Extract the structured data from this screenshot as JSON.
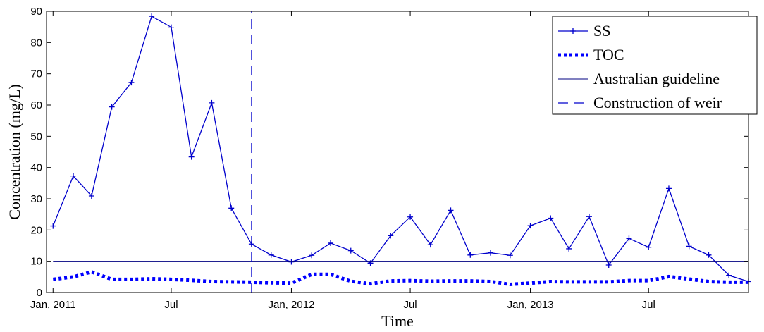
{
  "chart_data": {
    "type": "line",
    "title": "",
    "xlabel": "Time",
    "ylabel": "Concentration (mg/L)",
    "ylim": [
      0,
      90
    ],
    "yticks": [
      0,
      10,
      20,
      30,
      40,
      50,
      60,
      70,
      80,
      90
    ],
    "xlim": [
      "2010-12-22",
      "2013-12-01"
    ],
    "xticks": [
      {
        "date": "2011-01-01",
        "label": "Jan, 2011"
      },
      {
        "date": "2011-07-01",
        "label": "Jul"
      },
      {
        "date": "2012-01-01",
        "label": "Jan, 2012"
      },
      {
        "date": "2012-07-01",
        "label": "Jul"
      },
      {
        "date": "2013-01-01",
        "label": "Jan, 2013"
      },
      {
        "date": "2013-07-01",
        "label": "Jul"
      }
    ],
    "grid": false,
    "legend_position": "top-right",
    "series": [
      {
        "name": "SS",
        "style": "solid-plus-markers",
        "color": "#0000cc",
        "points": [
          {
            "x": "2011-01-01",
            "y": 21.3
          },
          {
            "x": "2011-02-01",
            "y": 37.3
          },
          {
            "x": "2011-03-01",
            "y": 30.9
          },
          {
            "x": "2011-04-01",
            "y": 59.4
          },
          {
            "x": "2011-05-01",
            "y": 67.2
          },
          {
            "x": "2011-06-01",
            "y": 88.4
          },
          {
            "x": "2011-07-01",
            "y": 84.9
          },
          {
            "x": "2011-08-01",
            "y": 43.4
          },
          {
            "x": "2011-09-01",
            "y": 60.7
          },
          {
            "x": "2011-10-01",
            "y": 27.0
          },
          {
            "x": "2011-11-01",
            "y": 15.5
          },
          {
            "x": "2011-12-01",
            "y": 12.0
          },
          {
            "x": "2012-01-01",
            "y": 9.8
          },
          {
            "x": "2012-02-01",
            "y": 11.9
          },
          {
            "x": "2012-03-01",
            "y": 15.8
          },
          {
            "x": "2012-04-01",
            "y": 13.4
          },
          {
            "x": "2012-05-01",
            "y": 9.4
          },
          {
            "x": "2012-06-01",
            "y": 18.2
          },
          {
            "x": "2012-07-01",
            "y": 24.2
          },
          {
            "x": "2012-08-01",
            "y": 15.3
          },
          {
            "x": "2012-09-01",
            "y": 26.3
          },
          {
            "x": "2012-10-01",
            "y": 12.0
          },
          {
            "x": "2012-11-01",
            "y": 12.7
          },
          {
            "x": "2012-12-01",
            "y": 11.9
          },
          {
            "x": "2013-01-01",
            "y": 21.4
          },
          {
            "x": "2013-02-01",
            "y": 23.8
          },
          {
            "x": "2013-03-01",
            "y": 14.0
          },
          {
            "x": "2013-04-01",
            "y": 24.3
          },
          {
            "x": "2013-05-01",
            "y": 8.8
          },
          {
            "x": "2013-06-01",
            "y": 17.3
          },
          {
            "x": "2013-07-01",
            "y": 14.5
          },
          {
            "x": "2013-08-01",
            "y": 33.3
          },
          {
            "x": "2013-09-01",
            "y": 14.8
          },
          {
            "x": "2013-10-01",
            "y": 12.0
          },
          {
            "x": "2013-11-01",
            "y": 5.5
          },
          {
            "x": "2013-12-01",
            "y": 3.5
          }
        ]
      },
      {
        "name": "TOC",
        "style": "dotted-thick",
        "color": "#0000ff",
        "points": [
          {
            "x": "2011-01-01",
            "y": 4.2
          },
          {
            "x": "2011-02-01",
            "y": 5.0
          },
          {
            "x": "2011-03-01",
            "y": 6.6
          },
          {
            "x": "2011-04-01",
            "y": 4.2
          },
          {
            "x": "2011-05-01",
            "y": 4.2
          },
          {
            "x": "2011-06-01",
            "y": 4.4
          },
          {
            "x": "2011-07-01",
            "y": 4.2
          },
          {
            "x": "2011-08-01",
            "y": 3.9
          },
          {
            "x": "2011-09-01",
            "y": 3.5
          },
          {
            "x": "2011-10-01",
            "y": 3.4
          },
          {
            "x": "2011-11-01",
            "y": 3.3
          },
          {
            "x": "2011-12-01",
            "y": 3.1
          },
          {
            "x": "2012-01-01",
            "y": 3.0
          },
          {
            "x": "2012-02-01",
            "y": 5.8
          },
          {
            "x": "2012-03-01",
            "y": 5.8
          },
          {
            "x": "2012-04-01",
            "y": 3.6
          },
          {
            "x": "2012-05-01",
            "y": 2.8
          },
          {
            "x": "2012-06-01",
            "y": 3.7
          },
          {
            "x": "2012-07-01",
            "y": 3.8
          },
          {
            "x": "2012-08-01",
            "y": 3.6
          },
          {
            "x": "2012-09-01",
            "y": 3.7
          },
          {
            "x": "2012-10-01",
            "y": 3.7
          },
          {
            "x": "2012-11-01",
            "y": 3.5
          },
          {
            "x": "2012-12-01",
            "y": 2.6
          },
          {
            "x": "2013-01-01",
            "y": 3.0
          },
          {
            "x": "2013-02-01",
            "y": 3.5
          },
          {
            "x": "2013-03-01",
            "y": 3.4
          },
          {
            "x": "2013-04-01",
            "y": 3.4
          },
          {
            "x": "2013-05-01",
            "y": 3.4
          },
          {
            "x": "2013-06-01",
            "y": 3.8
          },
          {
            "x": "2013-07-01",
            "y": 3.8
          },
          {
            "x": "2013-08-01",
            "y": 5.1
          },
          {
            "x": "2013-09-01",
            "y": 4.3
          },
          {
            "x": "2013-10-01",
            "y": 3.5
          },
          {
            "x": "2013-11-01",
            "y": 3.3
          },
          {
            "x": "2013-12-01",
            "y": 3.3
          }
        ]
      },
      {
        "name": "Australian guideline",
        "style": "solid-thin",
        "color": "#000080",
        "points": [
          {
            "x": "2011-01-01",
            "y": 10
          },
          {
            "x": "2013-12-01",
            "y": 10
          }
        ]
      },
      {
        "name": "Construction of weir",
        "style": "dashed-vertical",
        "color": "#0000cc",
        "points": [
          {
            "x": "2011-11-01",
            "y": 0
          },
          {
            "x": "2011-11-01",
            "y": 90
          }
        ]
      }
    ]
  }
}
